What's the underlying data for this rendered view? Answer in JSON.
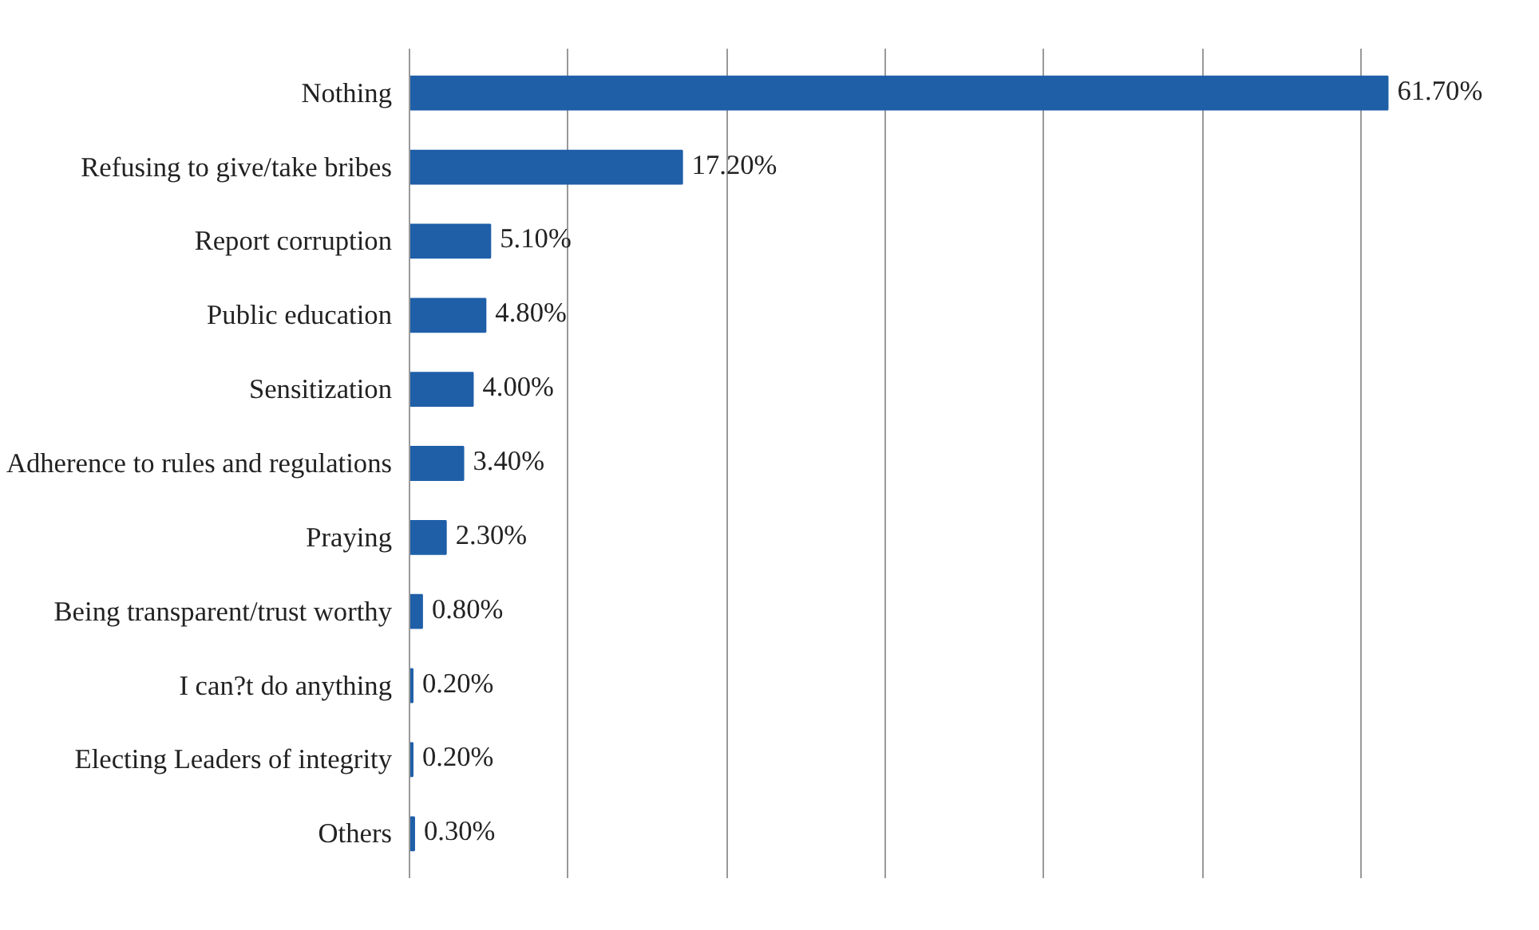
{
  "chart_data": {
    "type": "bar",
    "orientation": "horizontal",
    "categories": [
      "Nothing",
      "Refusing to give/take bribes",
      "Report corruption",
      "Public education",
      "Sensitization",
      "Adherence to rules and regulations",
      "Praying",
      "Being transparent/trust worthy",
      "I can?t do anything",
      "Electing Leaders of integrity",
      "Others"
    ],
    "values": [
      61.7,
      17.2,
      5.1,
      4.8,
      4.0,
      3.4,
      2.3,
      0.8,
      0.2,
      0.2,
      0.3
    ],
    "value_labels": [
      "61.70%",
      "17.20%",
      "5.10%",
      "4.80%",
      "4.00%",
      "3.40%",
      "2.30%",
      "0.80%",
      "0.20%",
      "0.20%",
      "0.30%"
    ],
    "color": "#1f5fa8",
    "grid": "x",
    "tick_labels": "y"
  }
}
